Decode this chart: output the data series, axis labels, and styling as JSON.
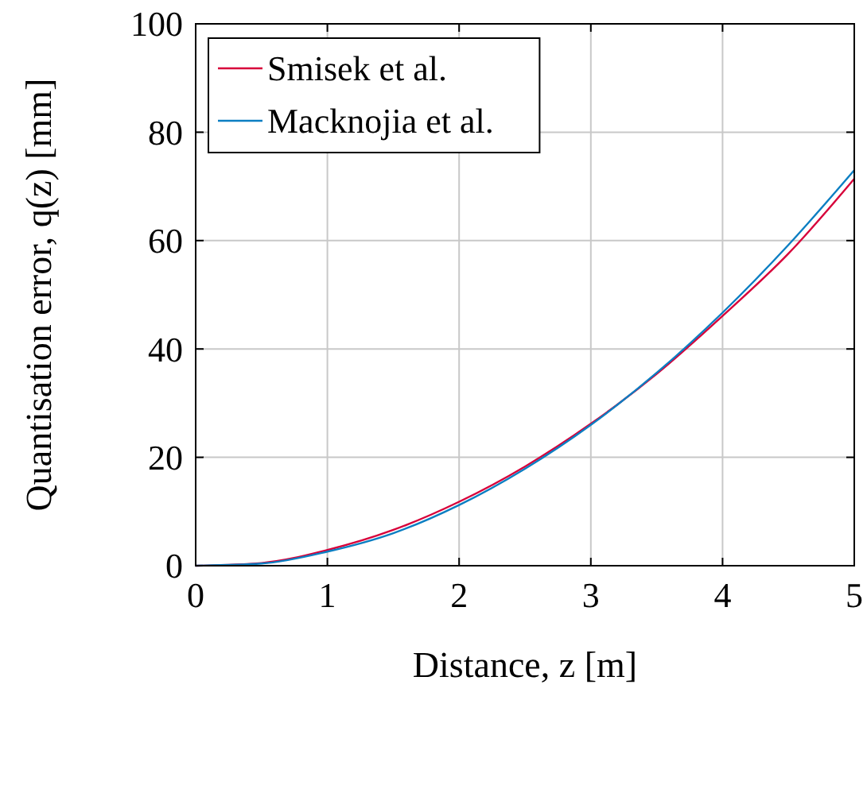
{
  "chart_data": {
    "type": "line",
    "xlabel": "Distance, z [m]",
    "ylabel": "Quantisation error, q(z) [mm]",
    "x": [
      0,
      0.5,
      1,
      1.5,
      2,
      2.5,
      3,
      3.5,
      4,
      4.5,
      5
    ],
    "series": [
      {
        "name": "Smisek et al.",
        "color": "#d7003a",
        "values": [
          0,
          0.5,
          2.9,
          6.6,
          11.8,
          18.3,
          26.2,
          35.4,
          46.1,
          57.6,
          71.4
        ]
      },
      {
        "name": "Macknojia et al.",
        "color": "#0b7ec2",
        "values": [
          0,
          0.4,
          2.6,
          6.0,
          11.2,
          17.9,
          26.0,
          35.6,
          46.7,
          59.2,
          73.0
        ]
      }
    ],
    "xlim": [
      0,
      5
    ],
    "ylim": [
      0,
      100
    ],
    "xticks": [
      0,
      1,
      2,
      3,
      4,
      5
    ],
    "yticks": [
      0,
      20,
      40,
      60,
      80,
      100
    ],
    "grid": true,
    "legend": "top left",
    "marker": "none",
    "line_style": "solid"
  }
}
